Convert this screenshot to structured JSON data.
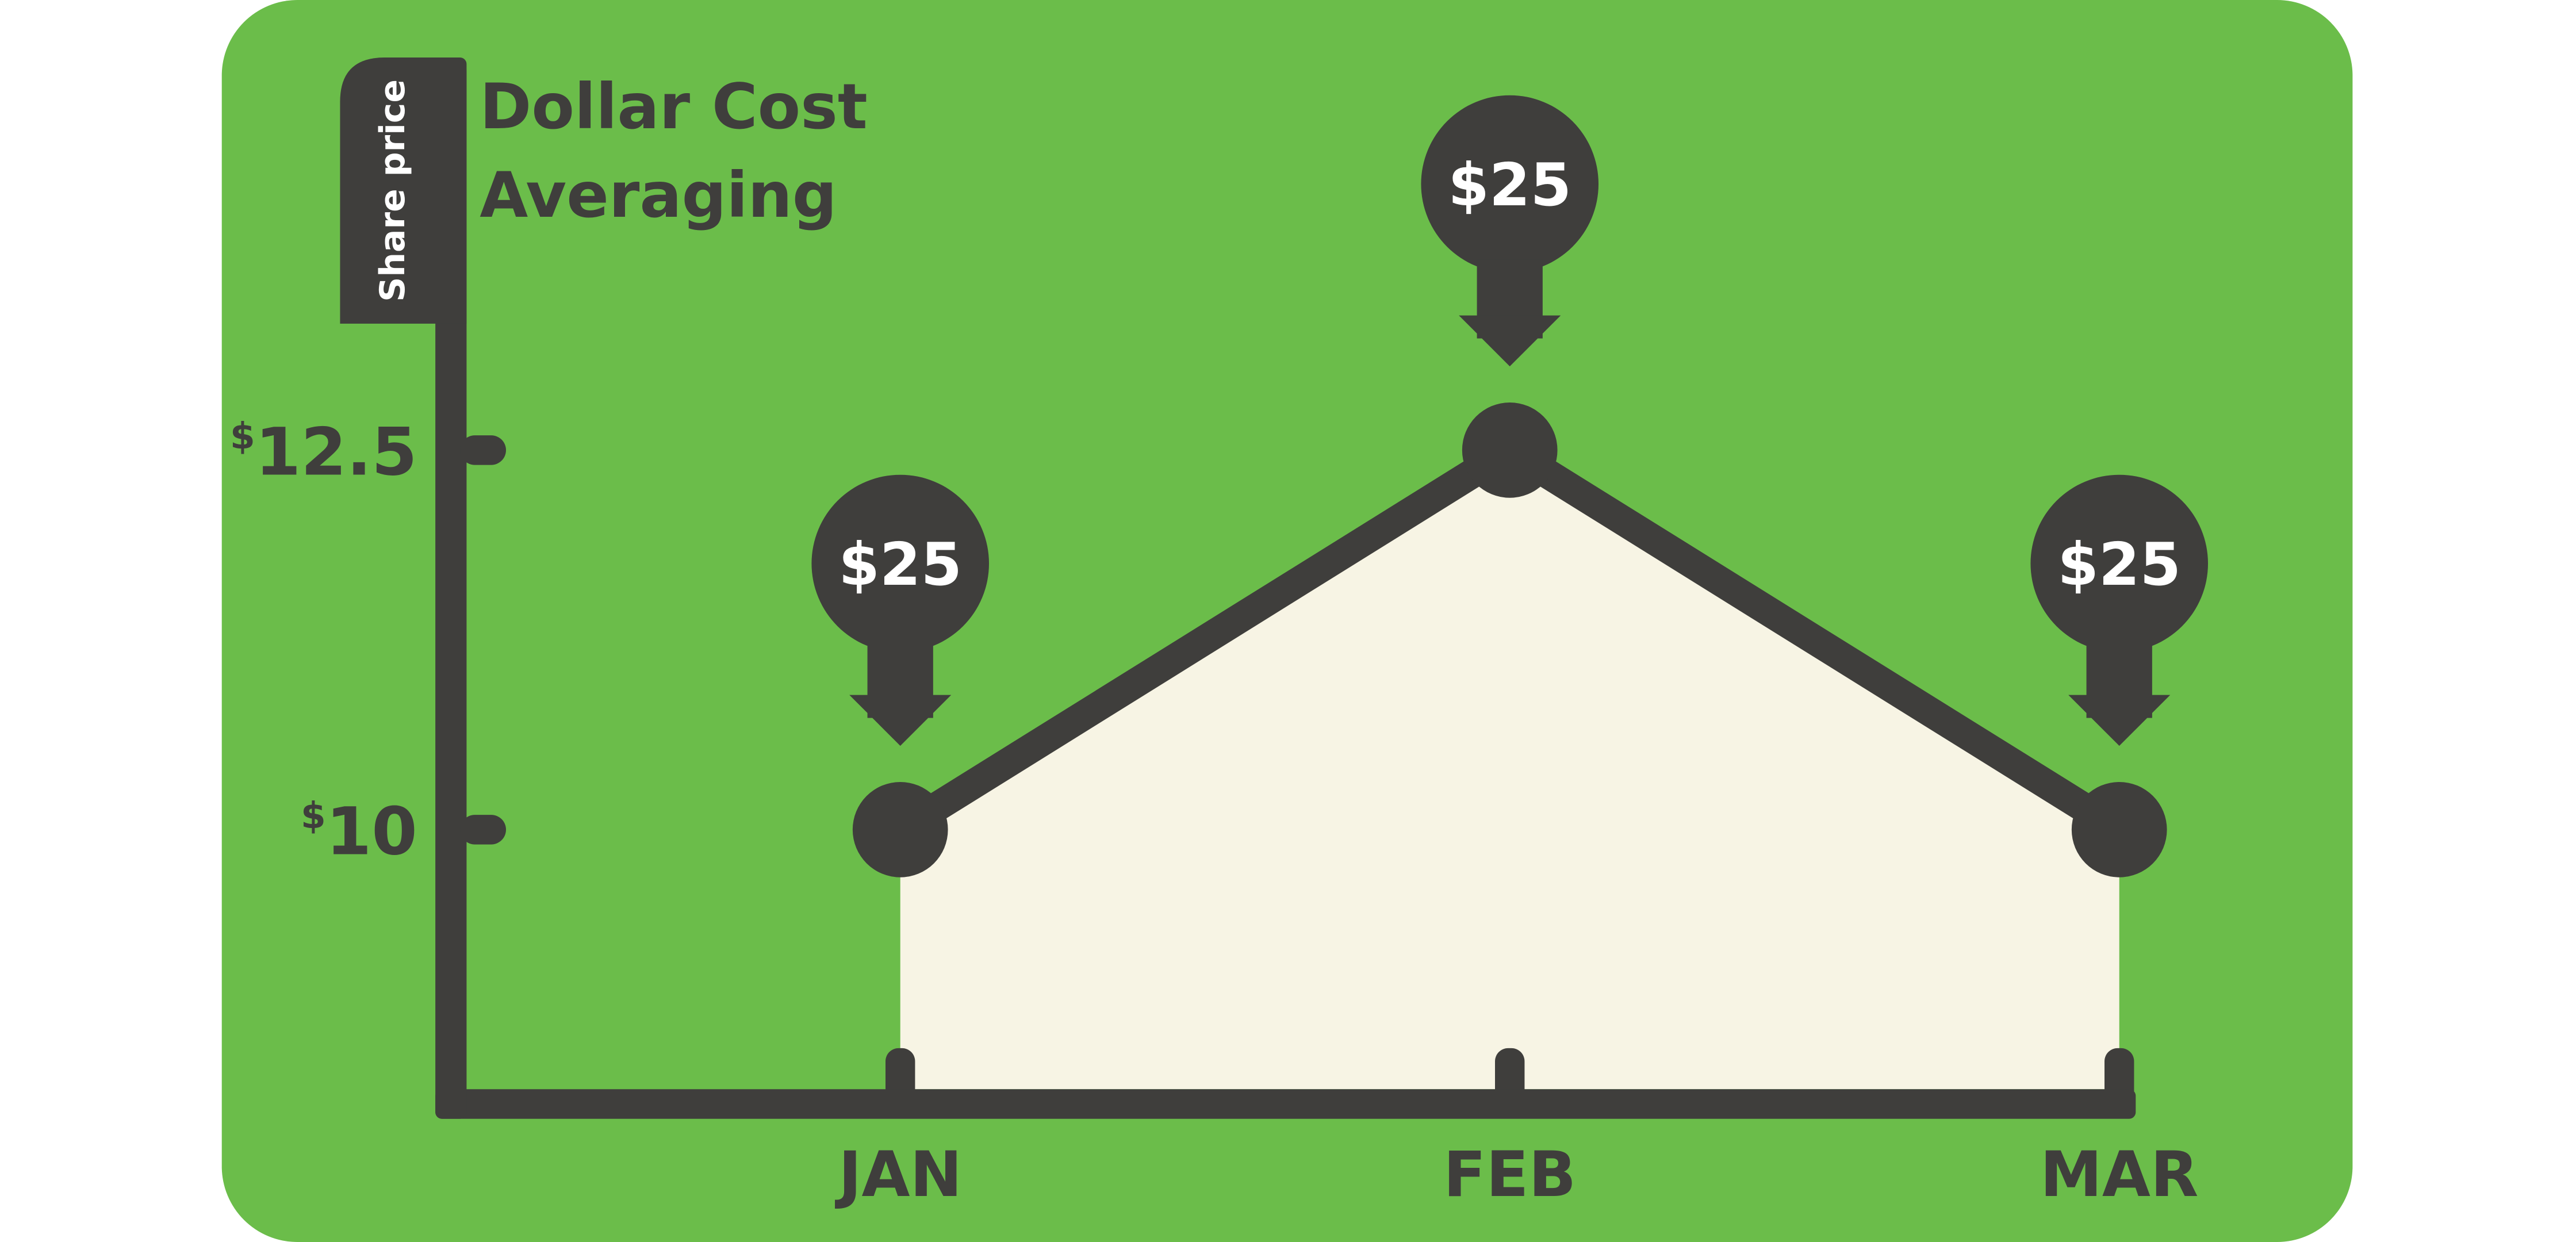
{
  "chart_data": {
    "type": "area",
    "title": "Dollar Cost Averaging",
    "title_lines": [
      "Dollar Cost",
      "Averaging"
    ],
    "ylabel": "Share price",
    "xlabel": "",
    "categories": [
      "JAN",
      "FEB",
      "MAR"
    ],
    "values": [
      10,
      12.5,
      10
    ],
    "y_ticks": [
      {
        "value": 10,
        "prefix": "$",
        "label": "10"
      },
      {
        "value": 12.5,
        "prefix": "$",
        "label": "12.5"
      }
    ],
    "annotations": [
      "$25",
      "$25",
      "$25"
    ],
    "grid": false,
    "legend": "none"
  },
  "colors": {
    "background": "#6bbd4a",
    "ink": "#3f3e3c",
    "area_fill": "#f7f4e4",
    "annotation_text": "#ffffff"
  }
}
